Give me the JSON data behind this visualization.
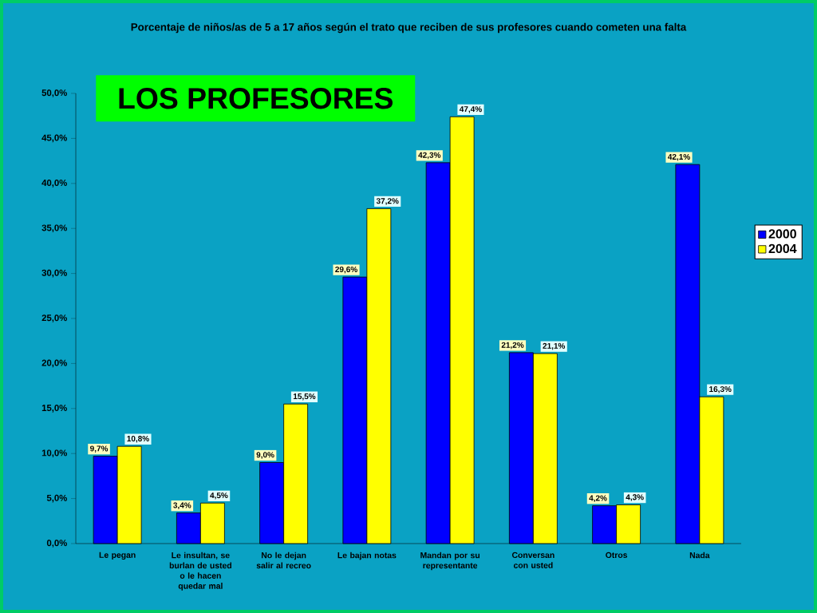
{
  "chart_data": {
    "type": "bar",
    "title": "Porcentaje de niños/as de 5 a 17 años según el trato que reciben de sus profesores cuando cometen una falta",
    "annotations": [
      "LOS PROFESORES"
    ],
    "categories": [
      "Le pegan",
      "Le insultan, se burlan de usted o le hacen quedar mal",
      "No le dejan salir al recreo",
      "Le bajan notas",
      "Mandan por su representante",
      "Conversan con usted",
      "Otros",
      "Nada"
    ],
    "series": [
      {
        "name": "2000",
        "color": "#0000ff",
        "values": [
          9.7,
          3.4,
          9.0,
          29.6,
          42.3,
          21.2,
          4.2,
          42.1
        ],
        "value_labels": [
          "9,7%",
          "3,4%",
          "9,0%",
          "29,6%",
          "42,3%",
          "21,2%",
          "4,2%",
          "42,1%"
        ]
      },
      {
        "name": "2004",
        "color": "#ffff00",
        "values": [
          10.8,
          4.5,
          15.5,
          37.2,
          47.4,
          21.1,
          4.3,
          16.3
        ],
        "value_labels": [
          "10,8%",
          "4,5%",
          "15,5%",
          "37,2%",
          "47,4%",
          "21,1%",
          "4,3%",
          "16,3%"
        ]
      }
    ],
    "ylim": [
      0,
      50
    ],
    "yticks": [
      {
        "value": 0,
        "label": "0,0%"
      },
      {
        "value": 5,
        "label": "5,0%"
      },
      {
        "value": 10,
        "label": "10,0%"
      },
      {
        "value": 15,
        "label": "15,0%"
      },
      {
        "value": 20,
        "label": "20,0%"
      },
      {
        "value": 25,
        "label": "25,0%"
      },
      {
        "value": 30,
        "label": "30,0%"
      },
      {
        "value": 35,
        "label": "35,0%"
      },
      {
        "value": 40,
        "label": "40,0%"
      },
      {
        "value": 45,
        "label": "45,0%"
      },
      {
        "value": 50,
        "label": "50,0%"
      }
    ],
    "legend": "right"
  }
}
